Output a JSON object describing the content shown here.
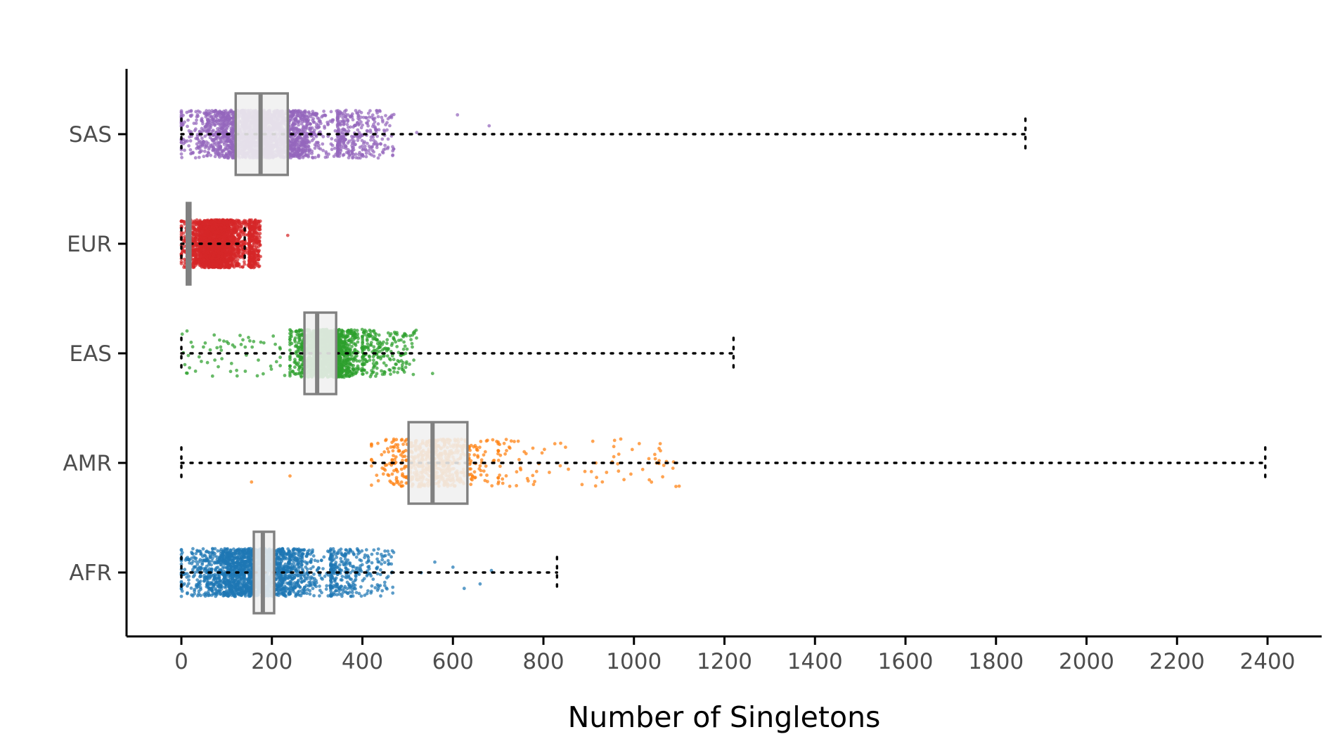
{
  "chart_data": {
    "type": "boxplot-jitter",
    "title": "",
    "xlabel": "Number of Singletons",
    "ylabel": "",
    "xlim": [
      -120,
      2520
    ],
    "x_ticks": [
      0,
      200,
      400,
      600,
      800,
      1000,
      1200,
      1400,
      1600,
      1800,
      2000,
      2200,
      2400
    ],
    "grid": false,
    "legend": "none",
    "categories": [
      "SAS",
      "EUR",
      "EAS",
      "AMR",
      "AFR"
    ],
    "series": [
      {
        "category": "SAS",
        "color": "#9467bd",
        "box": {
          "q1": 120,
          "median": 175,
          "q3": 235
        },
        "range_line": [
          0,
          1865
        ],
        "points": {
          "n": 2600,
          "core_low": 0,
          "core_high": 345,
          "tail_high": 470,
          "outliers": [
            520,
            610,
            680
          ]
        }
      },
      {
        "category": "EUR",
        "color": "#d62728",
        "box": {
          "q1": 12,
          "median": 15,
          "q3": 20
        },
        "range_line": [
          0,
          140
        ],
        "points": {
          "n": 2400,
          "core_low": 0,
          "core_high": 150,
          "tail_high": 175,
          "outliers": [
            235
          ]
        }
      },
      {
        "category": "EAS",
        "color": "#2ca02c",
        "box": {
          "q1": 272,
          "median": 300,
          "q3": 342
        },
        "range_line": [
          0,
          1220
        ],
        "points": {
          "n": 1700,
          "core_low": 240,
          "core_high": 400,
          "tail_high": 520,
          "low_scatter": [
            0,
            230
          ],
          "outliers": [
            555
          ]
        }
      },
      {
        "category": "AMR",
        "color": "#ff7f0e",
        "box": {
          "q1": 502,
          "median": 555,
          "q3": 632
        },
        "range_line": [
          0,
          2395
        ],
        "points": {
          "n": 700,
          "core_low": 420,
          "core_high": 700,
          "tail_high": 1100,
          "outliers": [
            155,
            240,
            1050,
            1100
          ]
        }
      },
      {
        "category": "AFR",
        "color": "#1f77b4",
        "box": {
          "q1": 160,
          "median": 180,
          "q3": 205
        },
        "range_line": [
          0,
          830
        ],
        "points": {
          "n": 2400,
          "core_low": 0,
          "core_high": 330,
          "tail_high": 470,
          "outliers": [
            530,
            560,
            600,
            625,
            660,
            685
          ]
        }
      }
    ]
  }
}
